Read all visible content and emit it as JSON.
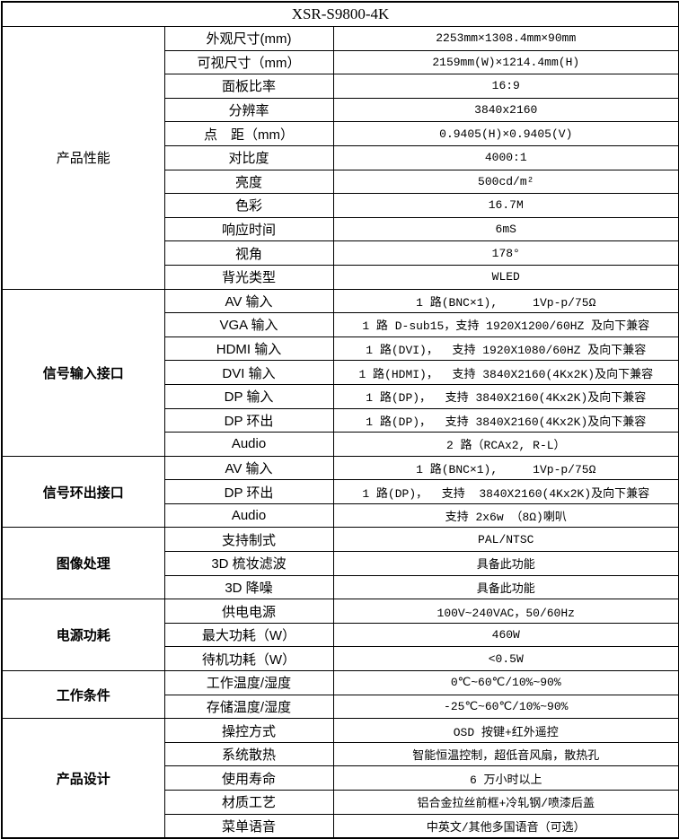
{
  "title": "XSR-S9800-4K",
  "table": {
    "sections": [
      {
        "category": "产品性能",
        "bold": false,
        "rows": [
          {
            "label": "外观尺寸(mm)",
            "value": "2253mm×1308.4mm×90mm"
          },
          {
            "label": "可视尺寸（mm）",
            "value": "2159mm(W)×1214.4mm(H)"
          },
          {
            "label": "面板比率",
            "value": "16:9"
          },
          {
            "label": "分辨率",
            "value": "3840x2160"
          },
          {
            "label": "点　距（mm）",
            "value": "0.9405(H)×0.9405(V)"
          },
          {
            "label": "对比度",
            "value": "4000:1"
          },
          {
            "label": "亮度",
            "value": "500cd/m²"
          },
          {
            "label": "色彩",
            "value": "16.7M"
          },
          {
            "label": "响应时间",
            "value": "6mS"
          },
          {
            "label": "视角",
            "value": "178°"
          },
          {
            "label": "背光类型",
            "value": "WLED"
          }
        ]
      },
      {
        "category": "信号输入接口",
        "bold": true,
        "rows": [
          {
            "label": "AV 输入",
            "value": "1 路(BNC×1),     1Vp-p/75Ω"
          },
          {
            "label": "VGA 输入",
            "value": "1 路 D-sub15，支持 1920X1200/60HZ 及向下兼容"
          },
          {
            "label": "HDMI 输入",
            "value": "1 路(DVI)，  支持 1920X1080/60HZ 及向下兼容"
          },
          {
            "label": "DVI 输入",
            "value": "1 路(HDMI)，  支持 3840X2160(4Kx2K)及向下兼容"
          },
          {
            "label": "DP 输入",
            "value": "1 路(DP)，  支持 3840X2160(4Kx2K)及向下兼容"
          },
          {
            "label": "DP 环出",
            "value": "1 路(DP)，  支持 3840X2160(4Kx2K)及向下兼容"
          },
          {
            "label": "Audio",
            "value": "2 路（RCAx2, R-L）"
          }
        ]
      },
      {
        "category": "信号环出接口",
        "bold": true,
        "rows": [
          {
            "label": "AV 输入",
            "value": "1 路(BNC×1),     1Vp-p/75Ω"
          },
          {
            "label": "DP 环出",
            "value": "1 路(DP)，  支持  3840X2160(4Kx2K)及向下兼容"
          },
          {
            "label": "Audio",
            "value": "支持 2x6w （8Ω)喇叭"
          }
        ]
      },
      {
        "category": "图像处理",
        "bold": true,
        "rows": [
          {
            "label": "支持制式",
            "value": "PAL/NTSC"
          },
          {
            "label": "3D 梳妆滤波",
            "value": "具备此功能"
          },
          {
            "label": "3D 降噪",
            "value": "具备此功能"
          }
        ]
      },
      {
        "category": "电源功耗",
        "bold": true,
        "rows": [
          {
            "label": "供电电源",
            "value": "100V~240VAC，50/60Hz"
          },
          {
            "label": "最大功耗（W）",
            "value": "460W"
          },
          {
            "label": "待机功耗（W）",
            "value": "<0.5W"
          }
        ]
      },
      {
        "category": "工作条件",
        "bold": true,
        "rows": [
          {
            "label": "工作温度/湿度",
            "value": "0℃~60℃/10%~90%"
          },
          {
            "label": "存储温度/湿度",
            "value": "-25℃~60℃/10%~90%"
          }
        ]
      },
      {
        "category": "产品设计",
        "bold": true,
        "rows": [
          {
            "label": "操控方式",
            "value": "OSD 按键+红外遥控"
          },
          {
            "label": "系统散热",
            "value": "智能恒温控制，超低音风扇，散热孔"
          },
          {
            "label": "使用寿命",
            "value": "6 万小时以上"
          },
          {
            "label": "材质工艺",
            "value": "铝合金拉丝前框+冷轧钢/喷漆后盖"
          },
          {
            "label": "菜单语音",
            "value": "中英文/其他多国语音（可选）"
          }
        ]
      }
    ]
  }
}
